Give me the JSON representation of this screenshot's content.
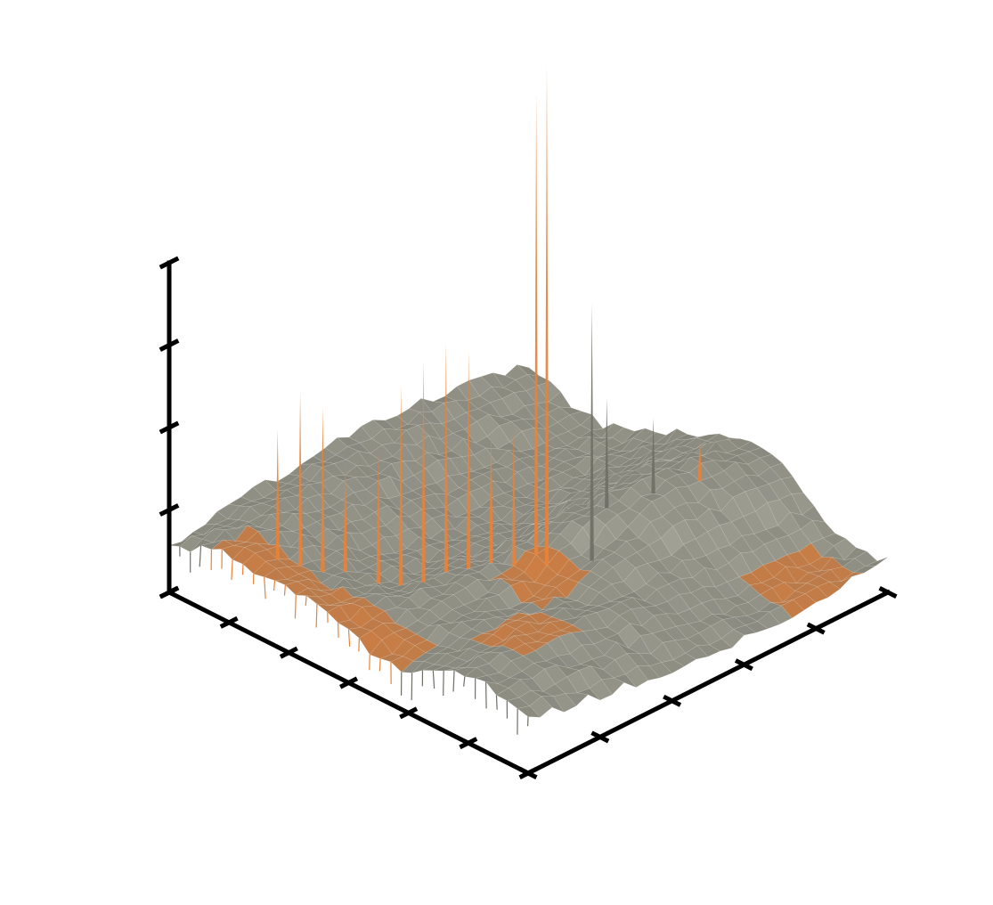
{
  "chart_data": {
    "type": "surface3d",
    "title": "",
    "xlabel": "",
    "ylabel": "",
    "zlabel": "",
    "tick_labels_shown": false,
    "grid": false,
    "legend": "none",
    "axes": {
      "x_ticks": 6,
      "y_ticks": 5,
      "z_ticks": 4
    },
    "colors": {
      "surface_base": "#8a8a7f",
      "surface_light": "#a9a89c",
      "surface_dark": "#6f6f66",
      "highlight": "#e8823a",
      "axis": "#000000"
    },
    "surface": {
      "rows": 34,
      "cols": 30,
      "baseline": 0.55,
      "ridge_height": 0.35,
      "noise": 0.12
    },
    "spikes": [
      {
        "row": 8,
        "col": 2,
        "height": 2.35,
        "color": "highlight"
      },
      {
        "row": 9,
        "col": 3,
        "height": 2.8,
        "color": "highlight"
      },
      {
        "row": 10,
        "col": 4,
        "height": 2.6,
        "color": "highlight"
      },
      {
        "row": 11,
        "col": 5,
        "height": 2.0,
        "color": "highlight"
      },
      {
        "row": 13,
        "col": 6,
        "height": 2.1,
        "color": "highlight"
      },
      {
        "row": 14,
        "col": 7,
        "height": 2.9,
        "color": "highlight"
      },
      {
        "row": 15,
        "col": 8,
        "height": 3.2,
        "color": "highlight"
      },
      {
        "row": 16,
        "col": 9,
        "height": 3.4,
        "color": "highlight"
      },
      {
        "row": 17,
        "col": 10,
        "height": 3.3,
        "color": "highlight"
      },
      {
        "row": 18,
        "col": 11,
        "height": 2.4,
        "color": "highlight"
      },
      {
        "row": 19,
        "col": 12,
        "height": 2.3,
        "color": "highlight"
      },
      {
        "row": 20,
        "col": 13,
        "height": 6.4,
        "color": "highlight"
      },
      {
        "row": 21,
        "col": 13,
        "height": 6.8,
        "color": "highlight"
      },
      {
        "row": 23,
        "col": 15,
        "height": 3.9,
        "color": "base"
      },
      {
        "row": 21,
        "col": 18,
        "height": 2.4,
        "color": "base"
      },
      {
        "row": 22,
        "col": 21,
        "height": 2.0,
        "color": "base"
      },
      {
        "row": 23,
        "col": 24,
        "height": 1.6,
        "color": "highlight"
      }
    ],
    "highlight_bands": [
      {
        "row_start": 4,
        "row_end": 22,
        "col_start": 0,
        "col_end": 3
      },
      {
        "row_start": 19,
        "row_end": 24,
        "col_start": 10,
        "col_end": 14
      },
      {
        "row_start": 24,
        "row_end": 29,
        "col_start": 4,
        "col_end": 9
      },
      {
        "row_start": 29,
        "row_end": 34,
        "col_start": 22,
        "col_end": 28
      }
    ]
  }
}
